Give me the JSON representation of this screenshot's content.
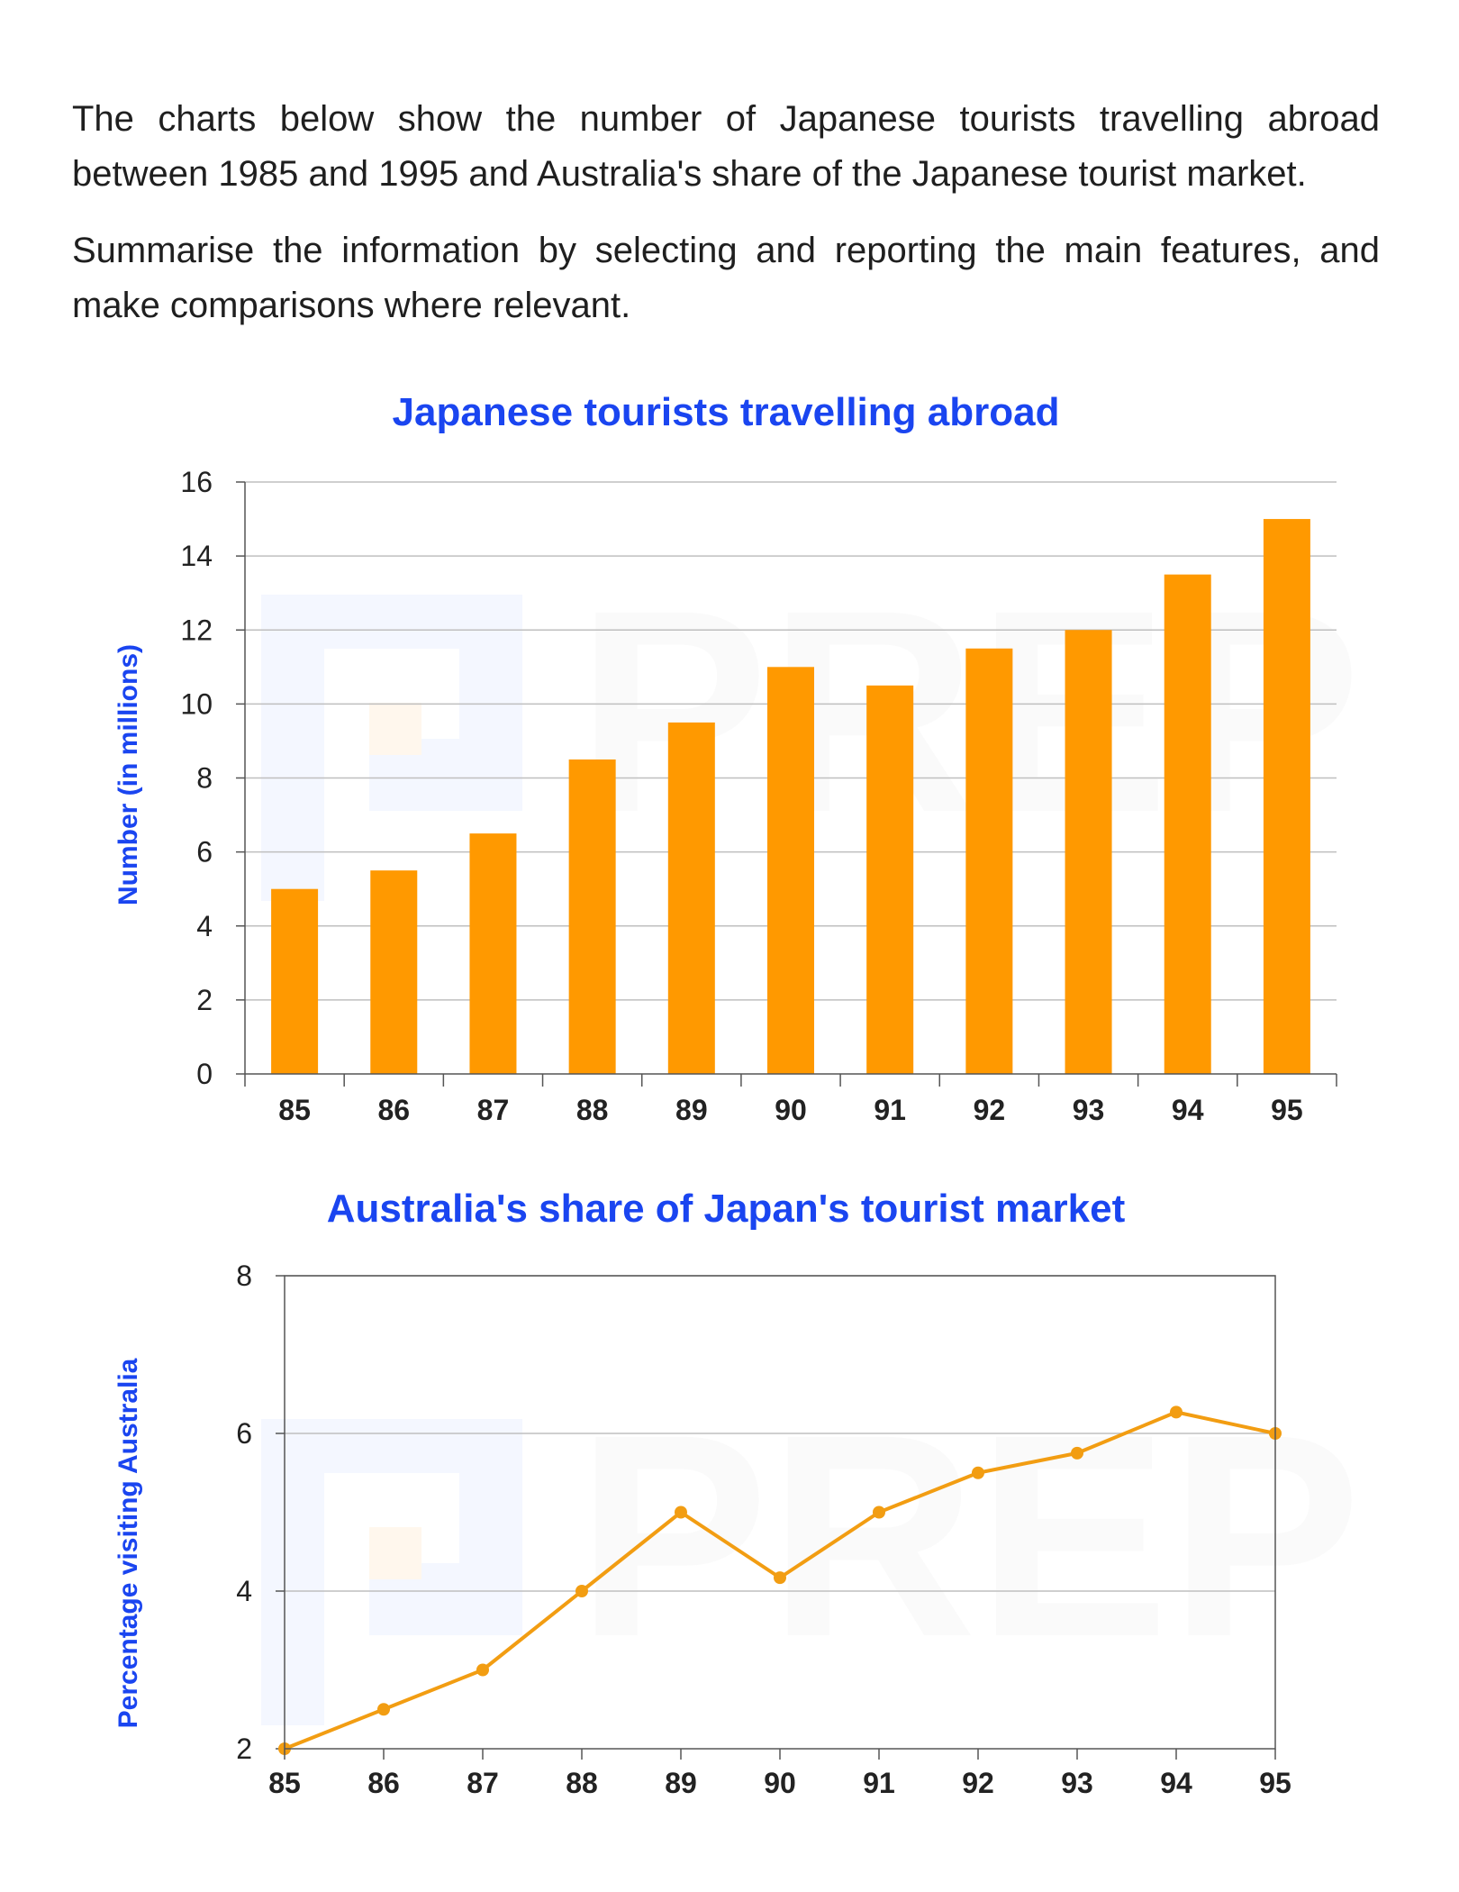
{
  "prompt": {
    "paragraph_1": "The charts below show the number of Japanese tourists travelling abroad between 1985 and 1995 and Australia's share of the Japanese tourist market.",
    "paragraph_2": "Summarise the information by selecting and reporting the main features, and make comparisons where relevant."
  },
  "watermark": {
    "text": "PREP"
  },
  "colors": {
    "bar": "#ff9900",
    "line": "#f29d12",
    "title": "#1a45f0",
    "grid": "#bfbfbf",
    "axis": "#555555"
  },
  "chart_data": [
    {
      "type": "bar",
      "title": "Japanese tourists travelling abroad",
      "xlabel": "",
      "ylabel": "Number (in millions)",
      "categories": [
        "85",
        "86",
        "87",
        "88",
        "89",
        "90",
        "91",
        "92",
        "93",
        "94",
        "95"
      ],
      "values": [
        5,
        5.5,
        6.5,
        8.5,
        9.5,
        11,
        10.5,
        11.5,
        12,
        13.5,
        15
      ],
      "ylim": [
        0,
        16
      ],
      "yticks": [
        0,
        2,
        4,
        6,
        8,
        10,
        12,
        14,
        16
      ],
      "grid": true
    },
    {
      "type": "line",
      "title": "Australia's share of Japan's tourist market",
      "xlabel": "",
      "ylabel": "Percentage visiting Australia",
      "categories": [
        "85",
        "86",
        "87",
        "88",
        "89",
        "90",
        "91",
        "92",
        "93",
        "94",
        "95"
      ],
      "values": [
        2,
        2.5,
        3,
        4,
        5,
        4.17,
        5,
        5.5,
        5.75,
        6.27,
        6
      ],
      "ylim": [
        2,
        8
      ],
      "yticks": [
        2,
        4,
        6,
        8
      ],
      "grid": true
    }
  ]
}
